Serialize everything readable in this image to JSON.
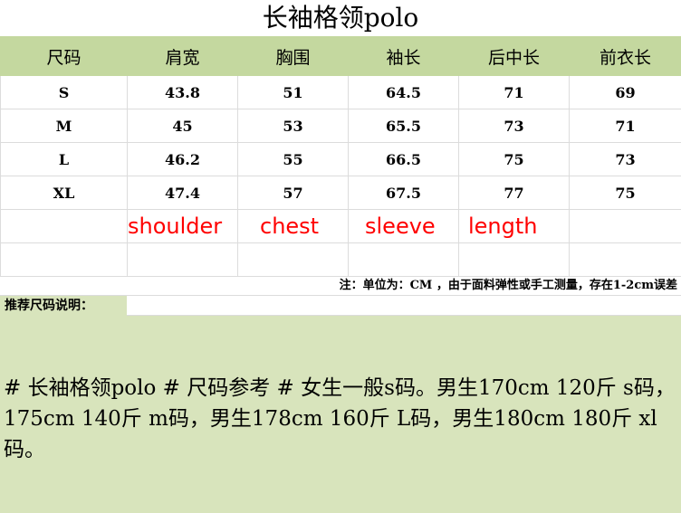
{
  "title": "长袖格领polo",
  "table": {
    "headers": [
      "尺码",
      "肩宽",
      "胸围",
      "袖长",
      "后中长",
      "前衣长"
    ],
    "rows": [
      [
        "S",
        "43.8",
        "51",
        "64.5",
        "71",
        "69"
      ],
      [
        "M",
        "45",
        "53",
        "65.5",
        "73",
        "71"
      ],
      [
        "L",
        "46.2",
        "55",
        "66.5",
        "75",
        "73"
      ],
      [
        "XL",
        "47.4",
        "57",
        "67.5",
        "77",
        "75"
      ]
    ],
    "english_labels": [
      "shoulder",
      "chest",
      "sleeve",
      "length"
    ]
  },
  "note": "注：单位为：CM ，由于面料弹性或手工测量，存在1-2cm误差",
  "recommend_label": "推荐尺码说明：",
  "description": "# 长袖格领polo # 尺码参考 # 女生一般s码。男生170cm 120斤 s码，175cm 140斤 m码，男生178cm 160斤 L码，男生180cm 180斤 xl码。"
}
